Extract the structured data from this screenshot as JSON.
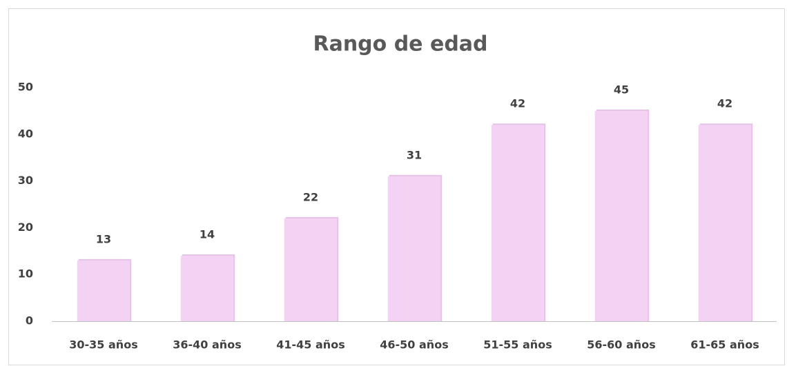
{
  "chart_data": {
    "type": "bar",
    "title": "Rango de edad",
    "categories": [
      "30-35 años",
      "36-40 años",
      "41-45 años",
      "46-50 años",
      "51-55 años",
      "56-60 años",
      "61-65 años"
    ],
    "values": [
      13,
      14,
      22,
      31,
      42,
      45,
      42
    ],
    "color": "#f3d2f4",
    "ylim": [
      0,
      50
    ],
    "yticks": [
      0,
      10,
      20,
      30,
      40,
      50
    ],
    "grid": false
  }
}
